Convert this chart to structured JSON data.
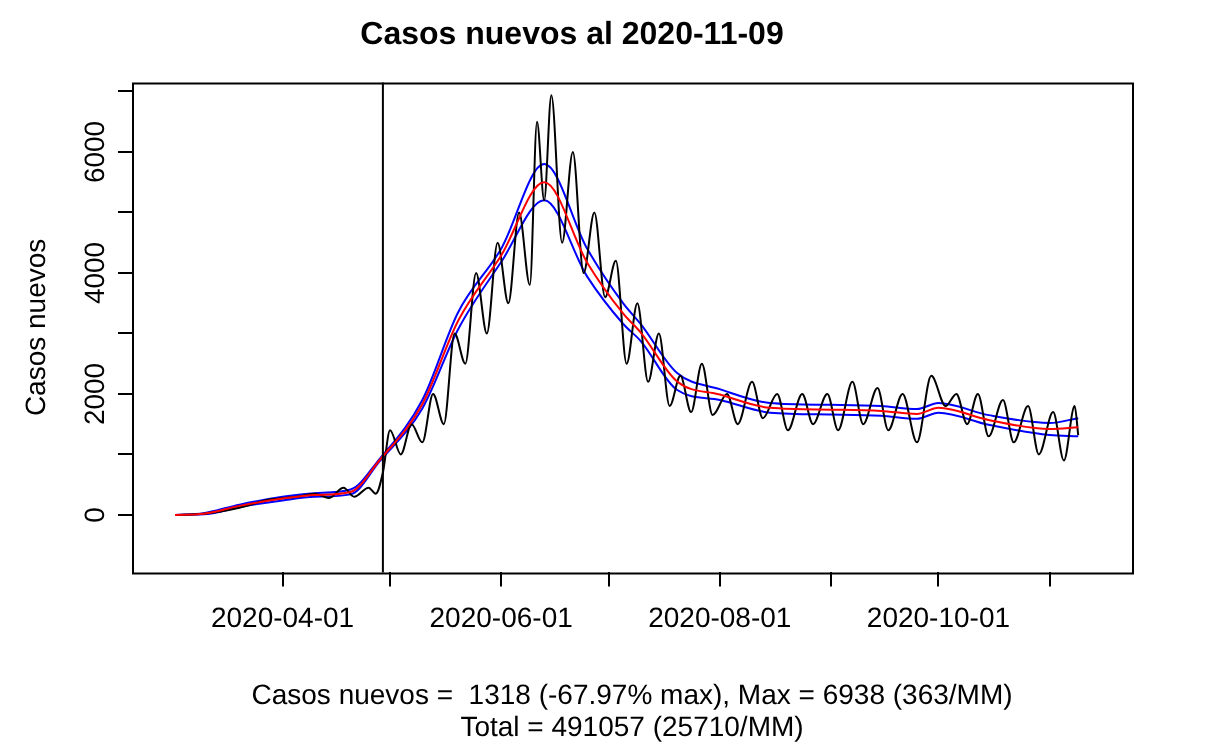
{
  "chart_data": {
    "type": "line",
    "title": "Casos nuevos al 2020-11-09",
    "ylabel": "Casos nuevos",
    "annotations": [
      "Casos nuevos =  1318 (-67.97% max), Max = 6938 (363/MM)",
      "Total = 491057 (25710/MM)"
    ],
    "xlim": [
      "2020-02-19",
      "2020-11-24"
    ],
    "xticks": [
      {
        "value": "2020-04-01",
        "label": "2020-04-01"
      },
      {
        "value": "2020-05-01",
        "label": null
      },
      {
        "value": "2020-06-01",
        "label": "2020-06-01"
      },
      {
        "value": "2020-07-01",
        "label": null
      },
      {
        "value": "2020-08-01",
        "label": "2020-08-01"
      },
      {
        "value": "2020-09-01",
        "label": null
      },
      {
        "value": "2020-10-01",
        "label": "2020-10-01"
      },
      {
        "value": "2020-11-01",
        "label": null
      }
    ],
    "ylim": [
      -950,
      7150
    ],
    "yticks": [
      0,
      {
        "value": 1000,
        "label": null
      },
      2000,
      {
        "value": 3000,
        "label": null
      },
      4000,
      {
        "value": 5000,
        "label": null
      },
      6000,
      {
        "value": 7000,
        "label": null
      }
    ],
    "grid": false,
    "legend": false,
    "marker": "none",
    "line_style": "solid",
    "ref_lines": [
      {
        "axis": "x",
        "value": "2020-04-29",
        "label": null,
        "color": "#000000"
      }
    ],
    "series": [
      {
        "color": "#000000",
        "x": [
          "2020-03-02",
          "2020-03-10",
          "2020-03-20",
          "2020-03-28",
          "2020-04-05",
          "2020-04-10",
          "2020-04-14",
          "2020-04-18",
          "2020-04-21",
          "2020-04-25",
          "2020-04-27",
          "2020-04-29",
          "2020-05-01",
          "2020-05-04",
          "2020-05-07",
          "2020-05-10",
          "2020-05-13",
          "2020-05-16",
          "2020-05-19",
          "2020-05-22",
          "2020-05-25",
          "2020-05-28",
          "2020-05-31",
          "2020-06-03",
          "2020-06-06",
          "2020-06-09",
          "2020-06-11",
          "2020-06-13",
          "2020-06-15",
          "2020-06-18",
          "2020-06-21",
          "2020-06-24",
          "2020-06-27",
          "2020-06-30",
          "2020-07-03",
          "2020-07-06",
          "2020-07-09",
          "2020-07-12",
          "2020-07-15",
          "2020-07-18",
          "2020-07-21",
          "2020-07-24",
          "2020-07-27",
          "2020-07-30",
          "2020-08-03",
          "2020-08-06",
          "2020-08-10",
          "2020-08-13",
          "2020-08-17",
          "2020-08-20",
          "2020-08-24",
          "2020-08-27",
          "2020-08-31",
          "2020-09-03",
          "2020-09-07",
          "2020-09-10",
          "2020-09-14",
          "2020-09-17",
          "2020-09-21",
          "2020-09-25",
          "2020-09-29",
          "2020-10-03",
          "2020-10-06",
          "2020-10-09",
          "2020-10-12",
          "2020-10-15",
          "2020-10-19",
          "2020-10-22",
          "2020-10-26",
          "2020-10-29",
          "2020-11-02",
          "2020-11-05",
          "2020-11-08",
          "2020-11-09"
        ],
        "values": [
          0,
          20,
          120,
          250,
          300,
          350,
          280,
          450,
          300,
          450,
          350,
          700,
          1400,
          1000,
          1500,
          1200,
          2000,
          1500,
          3000,
          2500,
          4000,
          3000,
          4500,
          3500,
          5000,
          3800,
          6500,
          5200,
          6938,
          4500,
          6000,
          4000,
          5000,
          3600,
          4200,
          2500,
          3500,
          2200,
          3000,
          1800,
          2300,
          1700,
          2500,
          1650,
          2000,
          1500,
          2200,
          1600,
          2000,
          1400,
          2000,
          1500,
          2000,
          1400,
          2200,
          1500,
          2100,
          1400,
          2000,
          1200,
          2300,
          1800,
          2000,
          1500,
          2000,
          1300,
          1900,
          1200,
          1800,
          1000,
          1700,
          900,
          1800,
          1318
        ]
      },
      {
        "color": "#0000ff",
        "x": [
          "2020-03-02",
          "2020-03-10",
          "2020-03-20",
          "2020-04-01",
          "2020-04-10",
          "2020-04-20",
          "2020-04-28",
          "2020-05-10",
          "2020-05-20",
          "2020-06-01",
          "2020-06-13",
          "2020-06-25",
          "2020-07-05",
          "2020-07-10",
          "2020-07-20",
          "2020-08-01",
          "2020-08-15",
          "2020-09-01",
          "2020-09-15",
          "2020-09-25",
          "2020-10-01",
          "2020-10-15",
          "2020-11-01",
          "2020-11-09"
        ],
        "values": [
          0,
          30,
          170,
          300,
          360,
          420,
          920,
          1900,
          3350,
          4400,
          5800,
          4400,
          3500,
          3150,
          2350,
          2080,
          1850,
          1820,
          1800,
          1750,
          1850,
          1650,
          1520,
          1600
        ]
      },
      {
        "color": "#ff0000",
        "x": [
          "2020-03-02",
          "2020-03-10",
          "2020-03-20",
          "2020-04-01",
          "2020-04-10",
          "2020-04-20",
          "2020-04-28",
          "2020-05-10",
          "2020-05-20",
          "2020-06-01",
          "2020-06-13",
          "2020-06-25",
          "2020-07-05",
          "2020-07-10",
          "2020-07-20",
          "2020-08-01",
          "2020-08-15",
          "2020-09-01",
          "2020-09-15",
          "2020-09-25",
          "2020-10-01",
          "2020-10-15",
          "2020-11-01",
          "2020-11-09"
        ],
        "values": [
          0,
          20,
          150,
          270,
          330,
          380,
          900,
          1830,
          3210,
          4290,
          5500,
          4170,
          3330,
          3010,
          2210,
          1990,
          1770,
          1740,
          1720,
          1670,
          1770,
          1570,
          1420,
          1450
        ]
      },
      {
        "color": "#0000ff",
        "x": [
          "2020-03-02",
          "2020-03-10",
          "2020-03-20",
          "2020-04-01",
          "2020-04-10",
          "2020-04-20",
          "2020-04-28",
          "2020-05-10",
          "2020-05-20",
          "2020-06-01",
          "2020-06-13",
          "2020-06-25",
          "2020-07-05",
          "2020-07-10",
          "2020-07-20",
          "2020-08-01",
          "2020-08-15",
          "2020-09-01",
          "2020-09-15",
          "2020-09-25",
          "2020-10-01",
          "2020-10-15",
          "2020-11-01",
          "2020-11-09"
        ],
        "values": [
          0,
          10,
          130,
          240,
          300,
          340,
          880,
          1760,
          3070,
          4180,
          5200,
          3940,
          3160,
          2870,
          2070,
          1900,
          1690,
          1660,
          1640,
          1590,
          1690,
          1490,
          1320,
          1300
        ]
      }
    ]
  }
}
